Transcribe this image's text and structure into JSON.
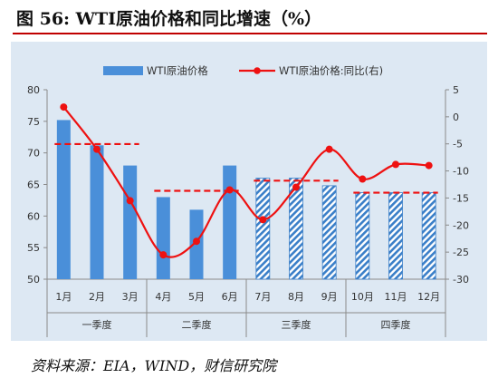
{
  "title": "图 56:  WTI原油价格和同比增速（%）",
  "source": "资料来源：EIA，WIND，财信研究院",
  "colors": {
    "bar_actual": "#4a8fd9",
    "bar_forecast": "#3a7fc8",
    "line": "#ee1111",
    "avg_line": "#ee1111",
    "panel": "#dde8f3"
  },
  "chart_data": {
    "type": "bar",
    "title": "",
    "categories": [
      "1月",
      "2月",
      "3月",
      "4月",
      "5月",
      "6月",
      "7月",
      "8月",
      "9月",
      "10月",
      "11月",
      "12月"
    ],
    "groups": [
      {
        "label": "一季度",
        "months": [
          0,
          1,
          2
        ]
      },
      {
        "label": "二季度",
        "months": [
          3,
          4,
          5
        ]
      },
      {
        "label": "三季度",
        "months": [
          6,
          7,
          8
        ]
      },
      {
        "label": "四季度",
        "months": [
          9,
          10,
          11
        ]
      }
    ],
    "y_left": {
      "min": 50,
      "max": 80,
      "ticks": [
        80,
        75,
        70,
        65,
        60,
        55,
        50
      ]
    },
    "y_right": {
      "min": -30,
      "max": 5,
      "ticks": [
        5,
        0,
        -5,
        -10,
        -15,
        -20,
        -25,
        -30
      ]
    },
    "series": [
      {
        "name": "WTI原油价格",
        "kind": "bar",
        "axis": "left",
        "values": [
          75.2,
          71.2,
          68.0,
          63.0,
          61.0,
          68.0,
          66.0,
          66.0,
          64.8,
          63.7,
          63.7,
          63.7
        ],
        "hatched": [
          false,
          false,
          false,
          false,
          false,
          false,
          true,
          true,
          true,
          true,
          true,
          true
        ]
      },
      {
        "name": "WTI原油价格:同比(右)",
        "kind": "line",
        "axis": "right",
        "values": [
          1.8,
          -6.0,
          -15.5,
          -25.5,
          -23.0,
          -13.5,
          -19.0,
          -13.0,
          -6.0,
          -11.5,
          -8.8,
          -9.0
        ]
      }
    ],
    "quarter_averages": [
      71.4,
      64.0,
      65.6,
      63.7
    ],
    "legend_position": "top-center",
    "grid": false
  }
}
